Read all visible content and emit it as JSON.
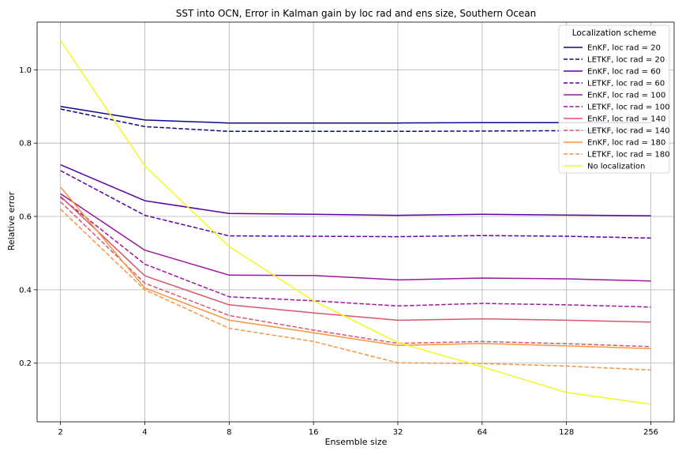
{
  "chart_data": {
    "type": "line",
    "title": "SST into OCN, Error in Kalman gain by loc rad and ens size, Southern Ocean",
    "xlabel": "Ensemble size",
    "ylabel": "Relative error",
    "x": [
      2,
      4,
      8,
      16,
      32,
      64,
      128,
      256
    ],
    "x_scale": "log2",
    "xlim": [
      1.65,
      310
    ],
    "ylim": [
      0.04,
      1.13
    ],
    "y_ticks": [
      0.2,
      0.4,
      0.6,
      0.8,
      1.0
    ],
    "y_tick_labels": [
      "0.2",
      "0.4",
      "0.6",
      "0.8",
      "1.0"
    ],
    "x_tick_labels": [
      "2",
      "4",
      "8",
      "16",
      "32",
      "64",
      "128",
      "256"
    ],
    "grid": true,
    "legend": {
      "title": "Localization scheme",
      "placement": "top-right"
    },
    "series": [
      {
        "name": "EnKF, loc rad = 20",
        "color": "#0d0887",
        "dash": "solid",
        "values": [
          0.9,
          0.863,
          0.855,
          0.855,
          0.855,
          0.856,
          0.856,
          0.856
        ]
      },
      {
        "name": "LETKF, loc rad = 20",
        "color": "#0d0887",
        "dash": "dashed",
        "values": [
          0.893,
          0.845,
          0.832,
          0.832,
          0.832,
          0.833,
          0.834,
          0.834
        ]
      },
      {
        "name": "EnKF, loc rad = 60",
        "color": "#5c01a6",
        "dash": "solid",
        "values": [
          0.741,
          0.643,
          0.608,
          0.606,
          0.603,
          0.606,
          0.604,
          0.602
        ]
      },
      {
        "name": "LETKF, loc rad = 60",
        "color": "#5c01a6",
        "dash": "dashed",
        "values": [
          0.725,
          0.603,
          0.547,
          0.546,
          0.545,
          0.548,
          0.546,
          0.541
        ]
      },
      {
        "name": "EnKF, loc rad = 100",
        "color": "#9c179e",
        "dash": "solid",
        "values": [
          0.662,
          0.508,
          0.44,
          0.439,
          0.427,
          0.432,
          0.43,
          0.424
        ]
      },
      {
        "name": "LETKF, loc rad = 100",
        "color": "#9c179e",
        "dash": "dashed",
        "values": [
          0.652,
          0.47,
          0.381,
          0.37,
          0.356,
          0.363,
          0.359,
          0.353
        ]
      },
      {
        "name": "EnKF, loc rad = 140",
        "color": "#d8576b",
        "dash": "solid",
        "values": [
          0.655,
          0.438,
          0.359,
          0.337,
          0.317,
          0.321,
          0.317,
          0.312
        ]
      },
      {
        "name": "LETKF, loc rad = 140",
        "color": "#d8576b",
        "dash": "dashed",
        "values": [
          0.64,
          0.418,
          0.33,
          0.29,
          0.254,
          0.259,
          0.253,
          0.245
        ]
      },
      {
        "name": "EnKF, loc rad = 180",
        "color": "#f89540",
        "dash": "solid",
        "values": [
          0.68,
          0.405,
          0.317,
          0.283,
          0.248,
          0.254,
          0.247,
          0.24
        ]
      },
      {
        "name": "LETKF, loc rad = 180",
        "color": "#f89540",
        "dash": "dashed",
        "values": [
          0.62,
          0.4,
          0.295,
          0.259,
          0.201,
          0.199,
          0.192,
          0.181
        ]
      },
      {
        "name": "No localization",
        "color": "#f0f921",
        "dash": "solid",
        "values": [
          1.08,
          0.738,
          0.518,
          0.37,
          0.256,
          0.19,
          0.12,
          0.088
        ]
      }
    ]
  }
}
